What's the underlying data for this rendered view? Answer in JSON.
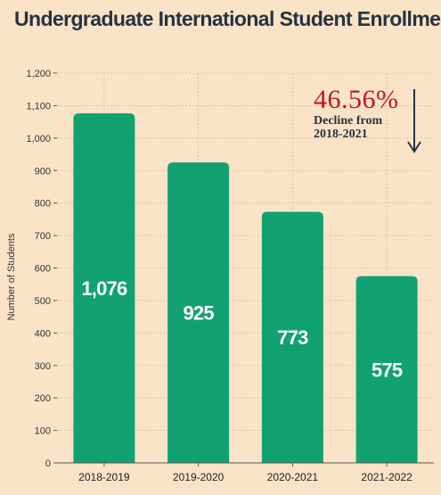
{
  "chart_data": {
    "type": "bar",
    "title": "Undergraduate International Student Enrollment",
    "ylabel": "Number of Students",
    "xlabel": "",
    "categories": [
      "2018-2019",
      "2019-2020",
      "2020-2021",
      "2021-2022"
    ],
    "values": [
      1076,
      925,
      773,
      575
    ],
    "data_labels": [
      "1,076",
      "925",
      "773",
      "575"
    ],
    "ylim": [
      0,
      1200
    ],
    "yticks": [
      0,
      100,
      200,
      300,
      400,
      500,
      600,
      700,
      800,
      900,
      1000,
      1100,
      1200
    ],
    "ytick_labels": [
      "0",
      "100",
      "200",
      "300",
      "400",
      "500",
      "600",
      "700",
      "800",
      "900",
      "1,000",
      "1,100",
      "1,200"
    ],
    "grid": true,
    "bar_color": "#12a171",
    "annotation": {
      "value": "46.56%",
      "text_line1": "Decline from",
      "text_line2": "2018-2021",
      "direction": "down"
    }
  }
}
